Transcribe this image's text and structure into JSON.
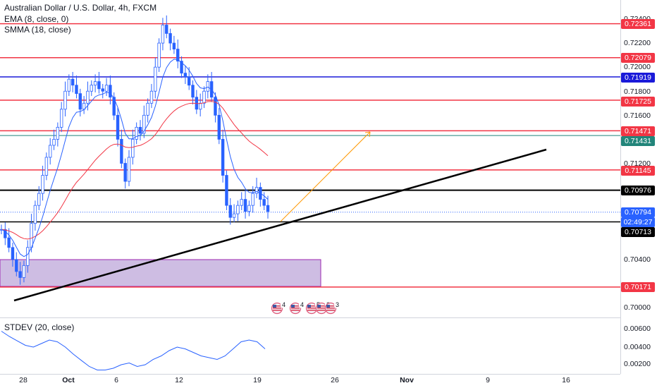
{
  "symbol": {
    "title": "Australian Dollar / U.S. Dollar, 4h, FXCM",
    "indicator_1": "EMA (8, close, 0)",
    "indicator_2": "SMMA (18, close)",
    "indicator_3": "STDEV (20, close)"
  },
  "price_axis": {
    "ticks": [
      "0.72400",
      "0.72200",
      "0.72000",
      "0.71800",
      "0.71600",
      "0.71200",
      "0.70400",
      "0.70000"
    ],
    "stdev_ticks": [
      "0.00600",
      "0.00400",
      "0.00200"
    ]
  },
  "time_axis": {
    "ticks": [
      {
        "label": "28",
        "bold": false
      },
      {
        "label": "Oct",
        "bold": true
      },
      {
        "label": "6",
        "bold": false
      },
      {
        "label": "12",
        "bold": false
      },
      {
        "label": "19",
        "bold": false
      },
      {
        "label": "26",
        "bold": false
      },
      {
        "label": "Nov",
        "bold": true
      },
      {
        "label": "9",
        "bold": false
      },
      {
        "label": "16",
        "bold": false
      }
    ]
  },
  "level_tags": [
    {
      "label": "0.72361",
      "color": "#f23645",
      "text_color": "#ffffff"
    },
    {
      "label": "0.72079",
      "color": "#f23645",
      "text_color": "#ffffff"
    },
    {
      "label": "0.71919",
      "color": "#1a1ad9",
      "text_color": "#ffffff"
    },
    {
      "label": "0.71725",
      "color": "#f23645",
      "text_color": "#ffffff"
    },
    {
      "label": "0.71471",
      "color": "#f23645",
      "text_color": "#ffffff"
    },
    {
      "label": "0.71431",
      "color": "#22857a",
      "text_color": "#ffffff"
    },
    {
      "label": "0.71145",
      "color": "#f23645",
      "text_color": "#ffffff"
    },
    {
      "label": "0.70976",
      "color": "#000000",
      "text_color": "#ffffff"
    },
    {
      "label": "0.70794",
      "color": "#2962ff",
      "text_color": "#ffffff"
    },
    {
      "label": "02:49:27",
      "color": "#2962ff",
      "text_color": "#ffffff"
    },
    {
      "label": "0.70713",
      "color": "#000000",
      "text_color": "#ffffff"
    },
    {
      "label": "0.70171",
      "color": "#f23645",
      "text_color": "#ffffff"
    }
  ],
  "events": [
    {
      "count": "4"
    },
    {
      "count": "4"
    },
    {
      "count": "5"
    },
    {
      "count": "3"
    },
    {
      "count": "3"
    }
  ],
  "colors": {
    "up_candle": "#2962ff",
    "down_candle": "#2962ff",
    "ema": "#2962ff",
    "smma": "#f23645",
    "stdev": "#2962ff",
    "support_zone": "#c9b6e0",
    "support_zone_border": "#9c27b0",
    "trendline": "#000000",
    "projection": "#ff9800"
  }
}
